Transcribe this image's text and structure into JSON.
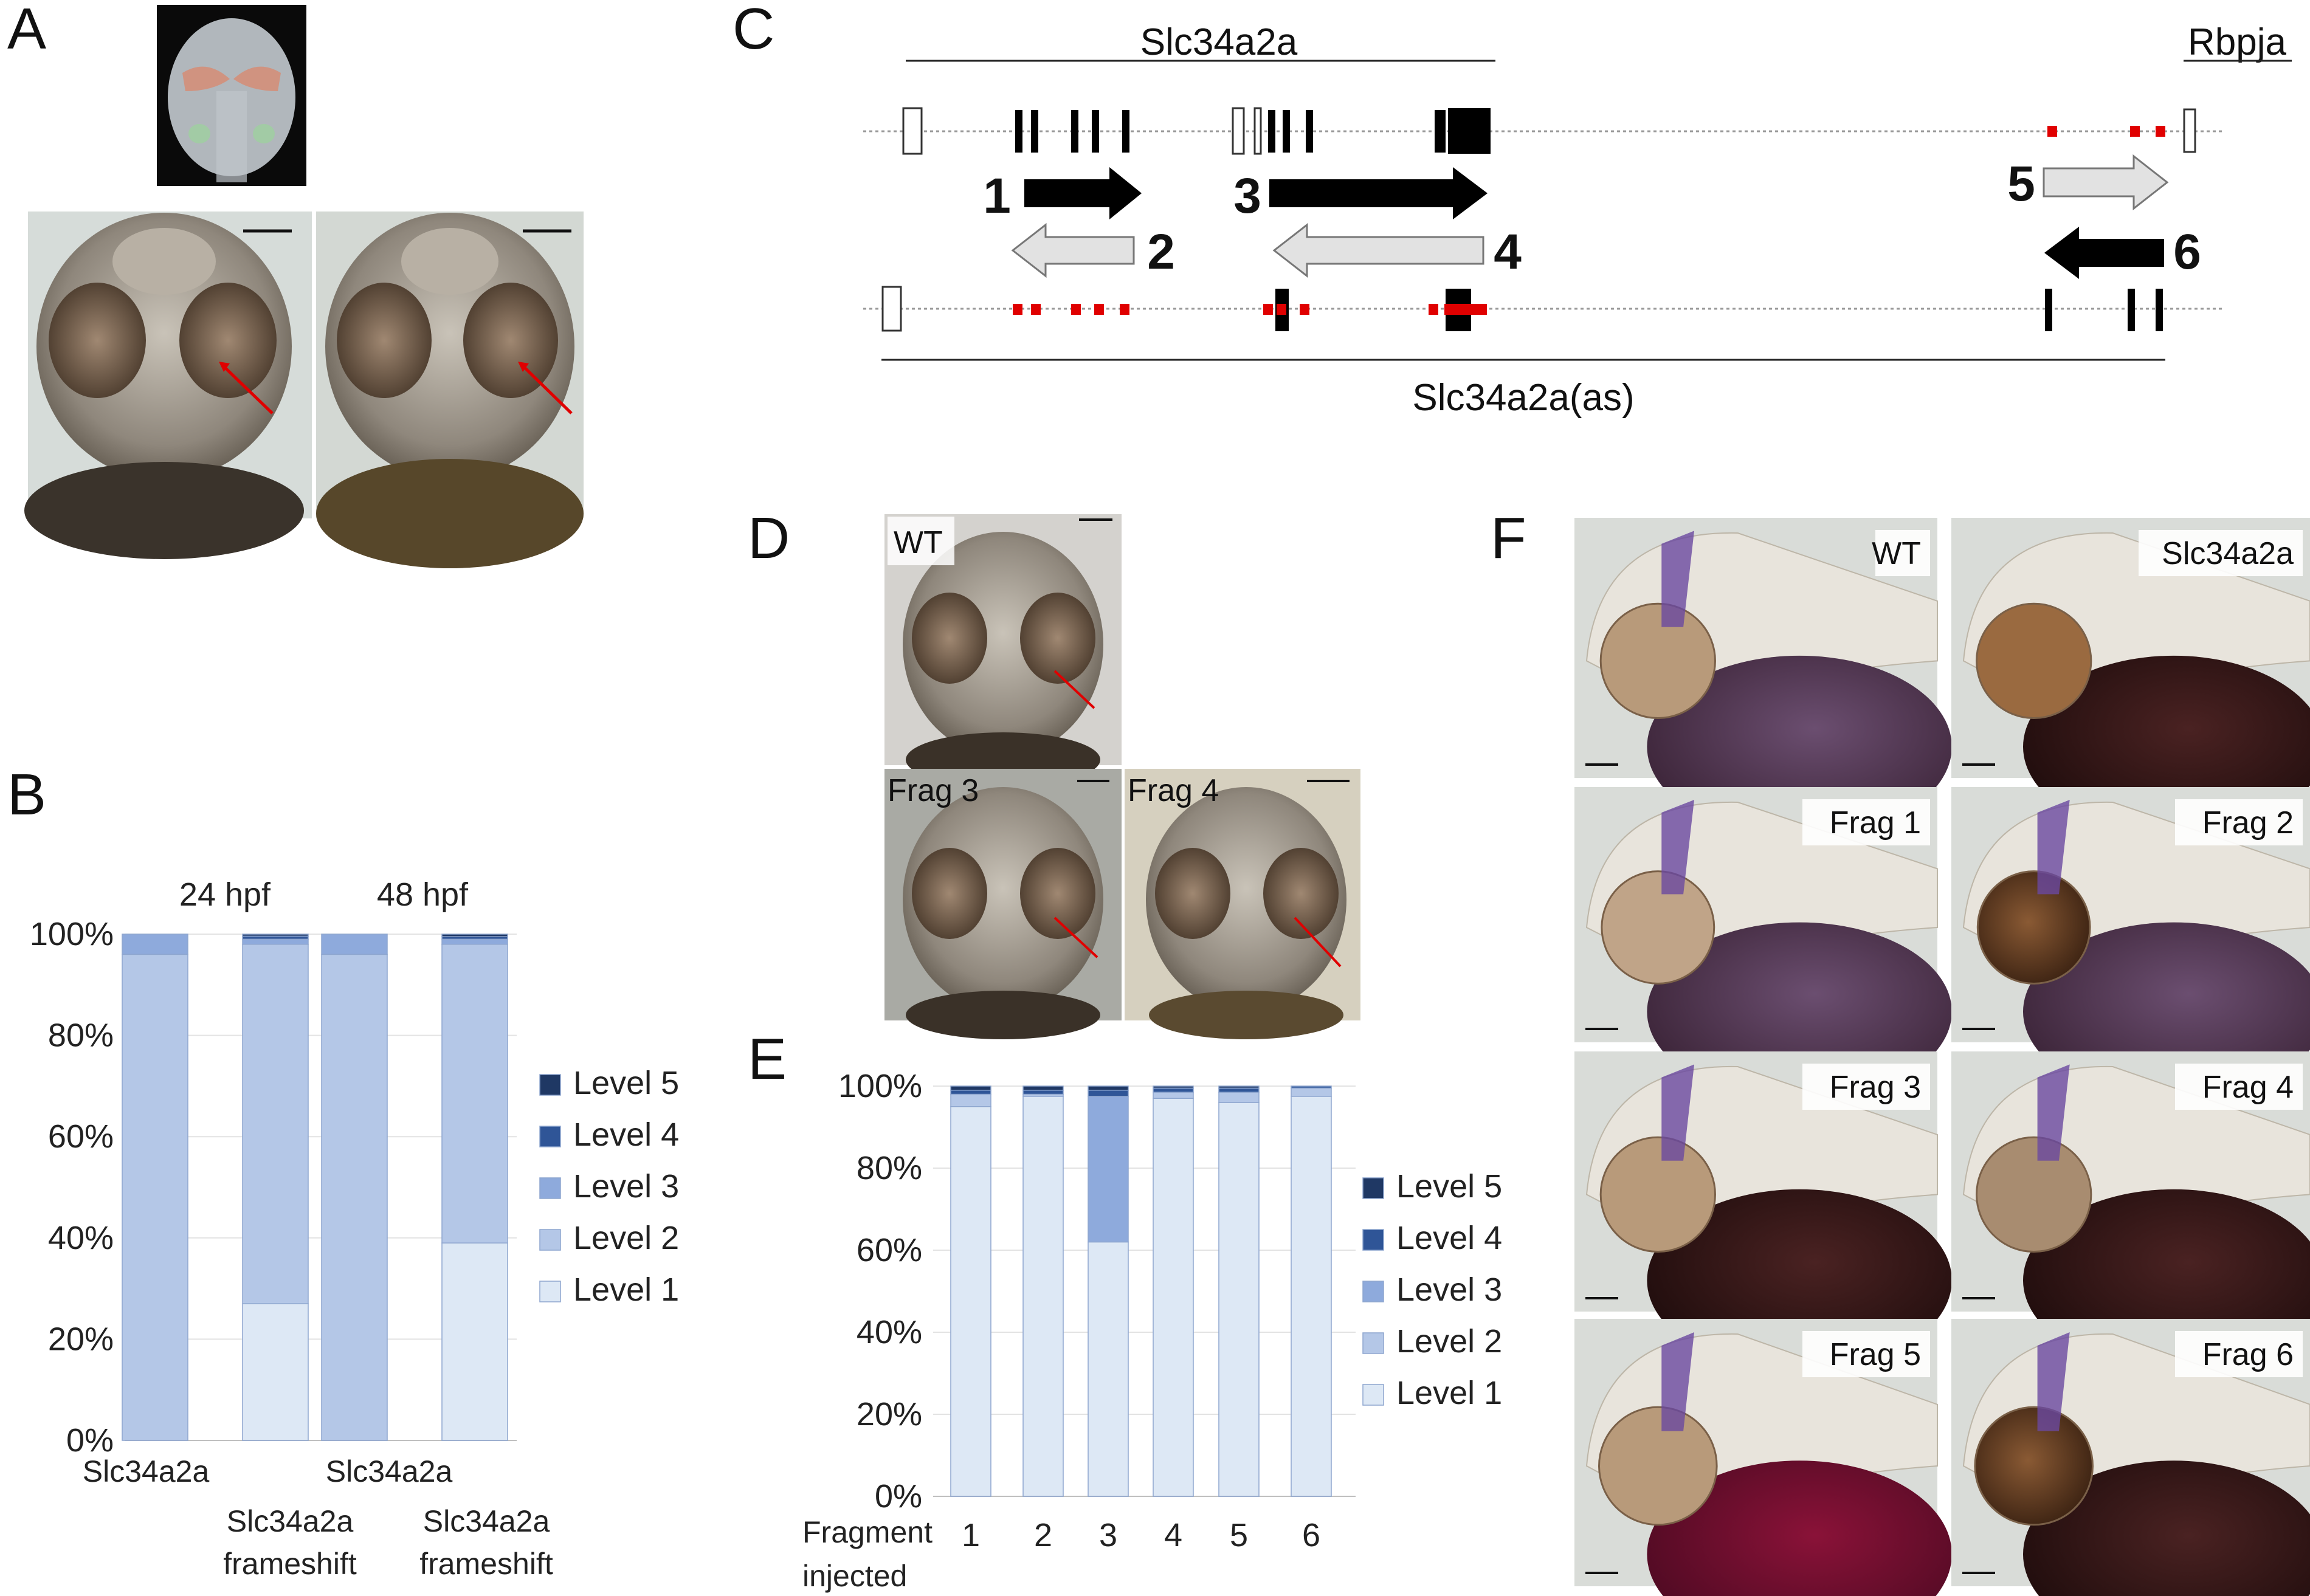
{
  "panels": {
    "A": {
      "letter": "A"
    },
    "B": {
      "letter": "B",
      "group_labels": [
        "24 hpf",
        "48 hpf"
      ],
      "x_labels_top": [
        "Slc34a2a",
        "Slc34a2a"
      ],
      "x_labels_bottom": [
        [
          "Slc34a2a",
          "frameshift"
        ],
        [
          "Slc34a2a",
          "frameshift"
        ]
      ]
    },
    "C": {
      "letter": "C",
      "gene_top_left": "Slc34a2a",
      "gene_top_right": "Rbpja",
      "gene_bottom": "Slc34a2a(as)",
      "fragments": [
        "1",
        "2",
        "3",
        "4",
        "5",
        "6"
      ]
    },
    "D": {
      "letter": "D",
      "labels": [
        "WT",
        "Frag 3",
        "Frag 4"
      ]
    },
    "E": {
      "letter": "E",
      "x_axis_label": [
        "Fragment",
        "injected"
      ]
    },
    "F": {
      "letter": "F",
      "labels": [
        "WT",
        "Slc34a2a",
        "Frag 1",
        "Frag 2",
        "Frag 3",
        "Frag 4",
        "Frag 5",
        "Frag 6"
      ]
    }
  },
  "colors": {
    "level1": "#dde8f5",
    "level2": "#b4c7e7",
    "level3": "#8eaadc",
    "level4": "#2f5597",
    "level5": "#1f3864",
    "exon": "#000000",
    "red_mark": "#e00000",
    "arrow_gray": "#e2e2e2"
  },
  "chart_data": [
    {
      "panel": "B",
      "type": "bar",
      "stacked": true,
      "categories": [
        "Slc34a2a (24 hpf)",
        "Slc34a2a frameshift (24 hpf)",
        "Slc34a2a (48 hpf)",
        "Slc34a2a frameshift (48 hpf)"
      ],
      "y_ticks": [
        "0%",
        "20%",
        "40%",
        "60%",
        "80%",
        "100%"
      ],
      "ylim": [
        0,
        100
      ],
      "legend": [
        "Level 5",
        "Level 4",
        "Level 3",
        "Level 2",
        "Level 1"
      ],
      "legend_position": "right",
      "series": [
        {
          "name": "Level 1",
          "values": [
            0,
            27,
            0,
            39
          ]
        },
        {
          "name": "Level 2",
          "values": [
            96,
            71,
            96,
            59
          ]
        },
        {
          "name": "Level 3",
          "values": [
            4,
            1,
            4,
            1
          ]
        },
        {
          "name": "Level 4",
          "values": [
            0,
            0.6,
            0,
            0.5
          ]
        },
        {
          "name": "Level 5",
          "values": [
            0,
            0.4,
            0,
            0.5
          ]
        }
      ]
    },
    {
      "panel": "E",
      "type": "bar",
      "stacked": true,
      "categories": [
        "1",
        "2",
        "3",
        "4",
        "5",
        "6"
      ],
      "y_ticks": [
        "0%",
        "20%",
        "40%",
        "60%",
        "80%",
        "100%"
      ],
      "ylim": [
        0,
        100
      ],
      "legend": [
        "Level 5",
        "Level 4",
        "Level 3",
        "Level 2",
        "Level 1"
      ],
      "legend_position": "right",
      "series": [
        {
          "name": "Level 1",
          "values": [
            95,
            97.5,
            62,
            97,
            96,
            97.5
          ]
        },
        {
          "name": "Level 2",
          "values": [
            3,
            0.5,
            0,
            1.5,
            2.5,
            2
          ]
        },
        {
          "name": "Level 3",
          "values": [
            0,
            0,
            35.5,
            0,
            0,
            0
          ]
        },
        {
          "name": "Level 4",
          "values": [
            1,
            1,
            1.5,
            1,
            1,
            0.5
          ]
        },
        {
          "name": "Level 5",
          "values": [
            1,
            1,
            1,
            0.5,
            0.5,
            0
          ]
        }
      ]
    }
  ]
}
